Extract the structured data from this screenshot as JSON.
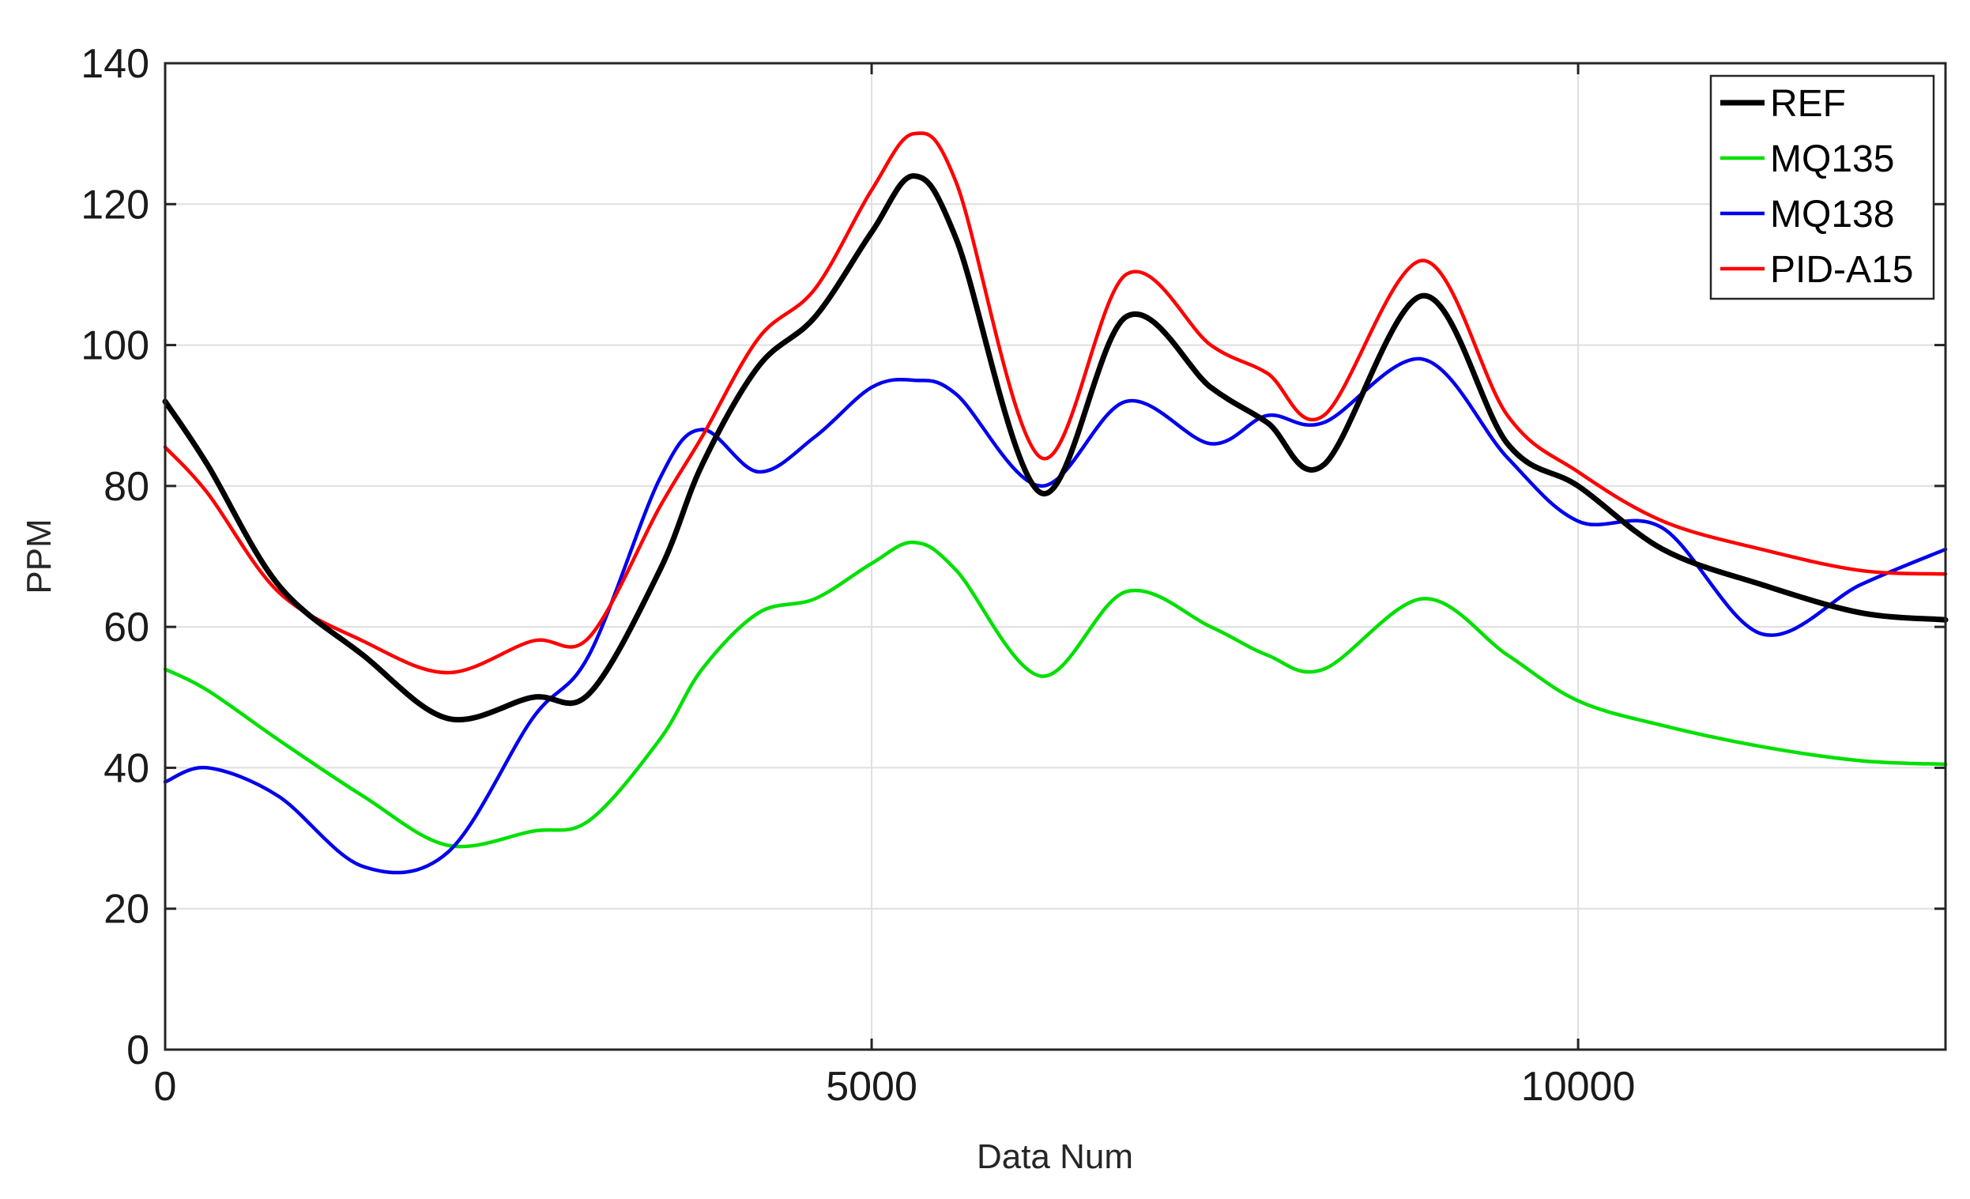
{
  "chart_data": {
    "type": "line",
    "title": "",
    "xlabel": "Data Num",
    "ylabel": "PPM",
    "xlim": [
      0,
      12600
    ],
    "ylim": [
      0,
      140
    ],
    "xticks": [
      0,
      5000,
      10000
    ],
    "xtick_labels": [
      "0",
      "5000",
      "10000"
    ],
    "yticks": [
      0,
      20,
      40,
      60,
      80,
      100,
      120,
      140
    ],
    "ytick_labels": [
      "0",
      "20",
      "40",
      "60",
      "80",
      "100",
      "120",
      "140"
    ],
    "grid": true,
    "legend_position": "top-right",
    "x": [
      0,
      300,
      800,
      1400,
      2000,
      2600,
      3000,
      3500,
      3800,
      4200,
      4600,
      5000,
      5300,
      5600,
      6200,
      6800,
      7400,
      7800,
      8200,
      8900,
      9500,
      10000,
      10600,
      11300,
      12000,
      12600
    ],
    "series": [
      {
        "name": "REF",
        "color": "#000000",
        "width": 7,
        "values": [
          92,
          83,
          66,
          56,
          47,
          50,
          50.5,
          68,
          83,
          97,
          104,
          116,
          124,
          115,
          79,
          104,
          94,
          89,
          83,
          107,
          86,
          80,
          71,
          66,
          62,
          61
        ]
      },
      {
        "name": "MQ135",
        "color": "#00e000",
        "width": 4.5,
        "values": [
          54,
          51,
          44,
          36,
          29,
          31,
          32.5,
          44,
          54,
          62,
          64,
          69,
          72,
          68,
          53,
          65,
          60,
          56,
          54,
          64,
          56,
          49.5,
          46,
          43,
          41,
          40.5
        ]
      },
      {
        "name": "MQ138",
        "color": "#0000ee",
        "width": 4.5,
        "values": [
          38,
          40,
          36,
          26,
          28,
          47,
          56,
          81,
          88,
          82,
          87,
          94,
          95,
          93,
          80,
          92,
          86,
          90,
          89,
          98,
          84,
          75,
          74,
          59,
          66,
          71
        ]
      },
      {
        "name": "PID-A15",
        "color": "#ff0000",
        "width": 4.5,
        "values": [
          85.5,
          79,
          65,
          58,
          53.5,
          58,
          58.5,
          77,
          87,
          101,
          108,
          122,
          130,
          123,
          84,
          110,
          100,
          96,
          90,
          112,
          90,
          82,
          75,
          71,
          68,
          67.5
        ]
      }
    ]
  }
}
